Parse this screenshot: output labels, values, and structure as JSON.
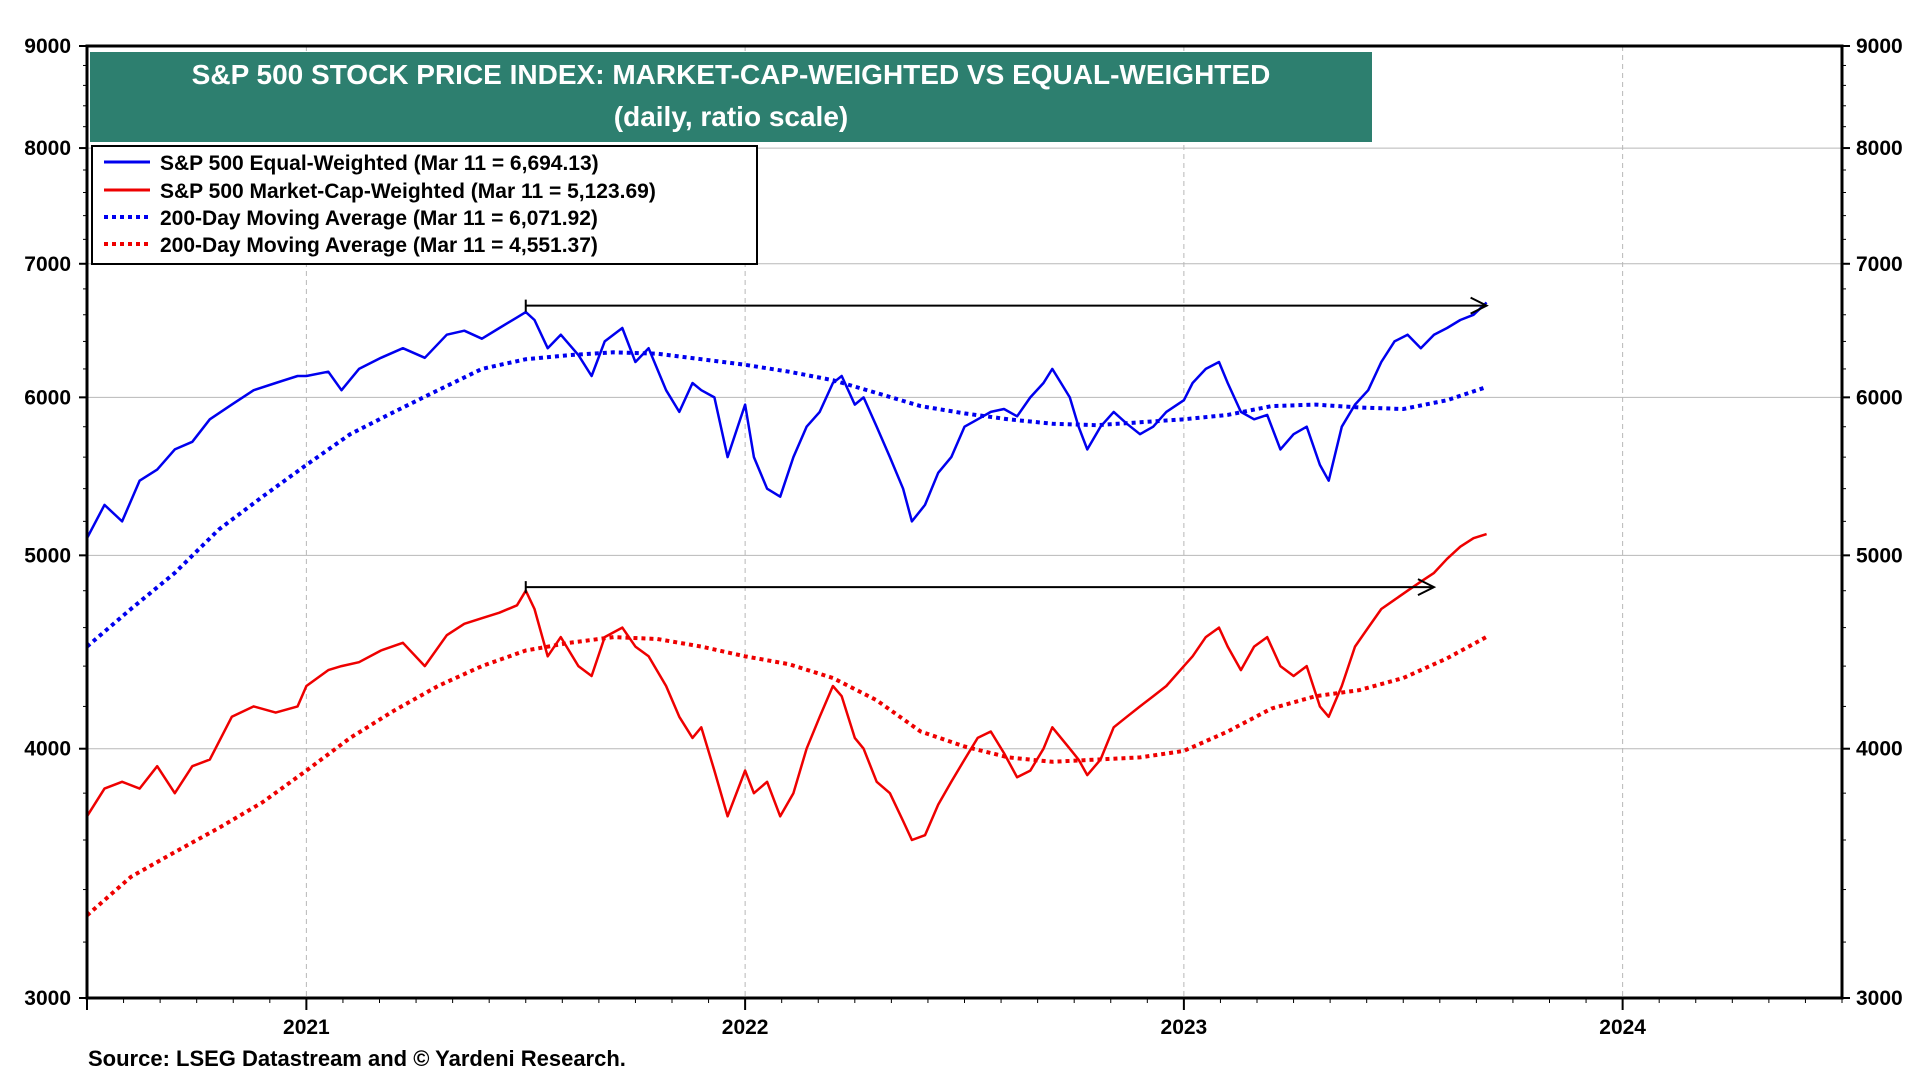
{
  "chart_data": {
    "type": "line",
    "title": "S&P 500 STOCK PRICE INDEX: MARKET-CAP-WEIGHTED VS EQUAL-WEIGHTED",
    "subtitle": "(daily, ratio scale)",
    "source": "Source: LSEG Datastream and © Yardeni Research.",
    "y_scale": "log",
    "ylim": [
      3000,
      9000
    ],
    "xlim": [
      2020.5,
      2024.5
    ],
    "y_ticks": [
      {
        "value": 3000,
        "label": "3000"
      },
      {
        "value": 4000,
        "label": "4000"
      },
      {
        "value": 5000,
        "label": "5000"
      },
      {
        "value": 6000,
        "label": "6000"
      },
      {
        "value": 7000,
        "label": "7000"
      },
      {
        "value": 8000,
        "label": "8000"
      },
      {
        "value": 9000,
        "label": "9000"
      }
    ],
    "year_boundaries": [
      2020.5,
      2021.0,
      2022.0,
      2023.0,
      2024.0
    ],
    "x_labels": [
      {
        "label": "2021",
        "at": 2021.0
      },
      {
        "label": "2022",
        "at": 2022.0
      },
      {
        "label": "2023",
        "at": 2023.0
      },
      {
        "label": "2024",
        "at": 2024.0
      }
    ],
    "series": [
      {
        "name": "S&P 500 Equal-Weighted",
        "legend": "S&P 500 Equal-Weighted (Mar 11 = 6,694.13)",
        "color": "#0000ee",
        "dash": "solid",
        "points": [
          [
            2020.5,
            5100
          ],
          [
            2020.54,
            5300
          ],
          [
            2020.58,
            5200
          ],
          [
            2020.62,
            5450
          ],
          [
            2020.66,
            5520
          ],
          [
            2020.7,
            5650
          ],
          [
            2020.74,
            5700
          ],
          [
            2020.78,
            5850
          ],
          [
            2020.83,
            5950
          ],
          [
            2020.88,
            6050
          ],
          [
            2020.93,
            6100
          ],
          [
            2020.98,
            6150
          ],
          [
            2021.0,
            6150
          ],
          [
            2021.05,
            6180
          ],
          [
            2021.08,
            6050
          ],
          [
            2021.12,
            6200
          ],
          [
            2021.17,
            6280
          ],
          [
            2021.22,
            6350
          ],
          [
            2021.27,
            6280
          ],
          [
            2021.32,
            6450
          ],
          [
            2021.36,
            6480
          ],
          [
            2021.4,
            6420
          ],
          [
            2021.44,
            6500
          ],
          [
            2021.48,
            6580
          ],
          [
            2021.5,
            6620
          ],
          [
            2021.52,
            6560
          ],
          [
            2021.55,
            6350
          ],
          [
            2021.58,
            6450
          ],
          [
            2021.62,
            6300
          ],
          [
            2021.65,
            6150
          ],
          [
            2021.68,
            6400
          ],
          [
            2021.72,
            6500
          ],
          [
            2021.75,
            6250
          ],
          [
            2021.78,
            6350
          ],
          [
            2021.82,
            6050
          ],
          [
            2021.85,
            5900
          ],
          [
            2021.88,
            6100
          ],
          [
            2021.9,
            6050
          ],
          [
            2021.93,
            6000
          ],
          [
            2021.96,
            5600
          ],
          [
            2022.0,
            5950
          ],
          [
            2022.02,
            5600
          ],
          [
            2022.05,
            5400
          ],
          [
            2022.08,
            5350
          ],
          [
            2022.11,
            5600
          ],
          [
            2022.14,
            5800
          ],
          [
            2022.17,
            5900
          ],
          [
            2022.2,
            6100
          ],
          [
            2022.22,
            6150
          ],
          [
            2022.25,
            5950
          ],
          [
            2022.27,
            6000
          ],
          [
            2022.3,
            5800
          ],
          [
            2022.33,
            5600
          ],
          [
            2022.36,
            5400
          ],
          [
            2022.38,
            5200
          ],
          [
            2022.41,
            5300
          ],
          [
            2022.44,
            5500
          ],
          [
            2022.47,
            5600
          ],
          [
            2022.5,
            5800
          ],
          [
            2022.53,
            5850
          ],
          [
            2022.56,
            5900
          ],
          [
            2022.59,
            5920
          ],
          [
            2022.62,
            5870
          ],
          [
            2022.65,
            6000
          ],
          [
            2022.68,
            6100
          ],
          [
            2022.7,
            6200
          ],
          [
            2022.72,
            6100
          ],
          [
            2022.74,
            6000
          ],
          [
            2022.76,
            5800
          ],
          [
            2022.78,
            5650
          ],
          [
            2022.81,
            5800
          ],
          [
            2022.84,
            5900
          ],
          [
            2022.87,
            5820
          ],
          [
            2022.9,
            5750
          ],
          [
            2022.93,
            5800
          ],
          [
            2022.96,
            5900
          ],
          [
            2023.0,
            5980
          ],
          [
            2023.02,
            6100
          ],
          [
            2023.05,
            6200
          ],
          [
            2023.08,
            6250
          ],
          [
            2023.1,
            6100
          ],
          [
            2023.13,
            5900
          ],
          [
            2023.16,
            5850
          ],
          [
            2023.19,
            5880
          ],
          [
            2023.22,
            5650
          ],
          [
            2023.25,
            5750
          ],
          [
            2023.28,
            5800
          ],
          [
            2023.31,
            5550
          ],
          [
            2023.33,
            5450
          ],
          [
            2023.36,
            5800
          ],
          [
            2023.39,
            5950
          ],
          [
            2023.42,
            6050
          ],
          [
            2023.45,
            6250
          ],
          [
            2023.48,
            6400
          ],
          [
            2023.51,
            6450
          ],
          [
            2023.54,
            6350
          ],
          [
            2023.57,
            6450
          ],
          [
            2023.6,
            6500
          ],
          [
            2023.63,
            6560
          ],
          [
            2023.66,
            6600
          ],
          [
            2023.69,
            6694
          ]
        ]
      },
      {
        "name": "S&P 500 Market-Cap-Weighted",
        "legend": "S&P 500 Market-Cap-Weighted (Mar 11 = 5,123.69)",
        "color": "#ee0000",
        "dash": "solid",
        "points": [
          [
            2020.5,
            3700
          ],
          [
            2020.54,
            3820
          ],
          [
            2020.58,
            3850
          ],
          [
            2020.62,
            3820
          ],
          [
            2020.66,
            3920
          ],
          [
            2020.7,
            3800
          ],
          [
            2020.74,
            3920
          ],
          [
            2020.78,
            3950
          ],
          [
            2020.83,
            4150
          ],
          [
            2020.88,
            4200
          ],
          [
            2020.93,
            4170
          ],
          [
            2020.98,
            4200
          ],
          [
            2021.0,
            4300
          ],
          [
            2021.05,
            4380
          ],
          [
            2021.08,
            4400
          ],
          [
            2021.12,
            4420
          ],
          [
            2021.17,
            4480
          ],
          [
            2021.22,
            4520
          ],
          [
            2021.27,
            4400
          ],
          [
            2021.32,
            4560
          ],
          [
            2021.36,
            4620
          ],
          [
            2021.4,
            4650
          ],
          [
            2021.44,
            4680
          ],
          [
            2021.48,
            4720
          ],
          [
            2021.5,
            4800
          ],
          [
            2021.52,
            4700
          ],
          [
            2021.55,
            4450
          ],
          [
            2021.58,
            4550
          ],
          [
            2021.62,
            4400
          ],
          [
            2021.65,
            4350
          ],
          [
            2021.68,
            4550
          ],
          [
            2021.72,
            4600
          ],
          [
            2021.75,
            4500
          ],
          [
            2021.78,
            4450
          ],
          [
            2021.82,
            4300
          ],
          [
            2021.85,
            4150
          ],
          [
            2021.88,
            4050
          ],
          [
            2021.9,
            4100
          ],
          [
            2021.93,
            3900
          ],
          [
            2021.96,
            3700
          ],
          [
            2022.0,
            3900
          ],
          [
            2022.02,
            3800
          ],
          [
            2022.05,
            3850
          ],
          [
            2022.08,
            3700
          ],
          [
            2022.11,
            3800
          ],
          [
            2022.14,
            4000
          ],
          [
            2022.17,
            4150
          ],
          [
            2022.2,
            4300
          ],
          [
            2022.22,
            4250
          ],
          [
            2022.25,
            4050
          ],
          [
            2022.27,
            4000
          ],
          [
            2022.3,
            3850
          ],
          [
            2022.33,
            3800
          ],
          [
            2022.36,
            3680
          ],
          [
            2022.38,
            3600
          ],
          [
            2022.41,
            3620
          ],
          [
            2022.44,
            3750
          ],
          [
            2022.47,
            3850
          ],
          [
            2022.5,
            3950
          ],
          [
            2022.53,
            4050
          ],
          [
            2022.56,
            4080
          ],
          [
            2022.59,
            3980
          ],
          [
            2022.62,
            3870
          ],
          [
            2022.65,
            3900
          ],
          [
            2022.68,
            4000
          ],
          [
            2022.7,
            4100
          ],
          [
            2022.72,
            4050
          ],
          [
            2022.74,
            4000
          ],
          [
            2022.76,
            3950
          ],
          [
            2022.78,
            3880
          ],
          [
            2022.81,
            3950
          ],
          [
            2022.84,
            4100
          ],
          [
            2022.87,
            4150
          ],
          [
            2022.9,
            4200
          ],
          [
            2022.93,
            4250
          ],
          [
            2022.96,
            4300
          ],
          [
            2023.0,
            4400
          ],
          [
            2023.02,
            4450
          ],
          [
            2023.05,
            4550
          ],
          [
            2023.08,
            4600
          ],
          [
            2023.1,
            4500
          ],
          [
            2023.13,
            4380
          ],
          [
            2023.16,
            4500
          ],
          [
            2023.19,
            4550
          ],
          [
            2023.22,
            4400
          ],
          [
            2023.25,
            4350
          ],
          [
            2023.28,
            4400
          ],
          [
            2023.31,
            4200
          ],
          [
            2023.33,
            4150
          ],
          [
            2023.36,
            4300
          ],
          [
            2023.39,
            4500
          ],
          [
            2023.42,
            4600
          ],
          [
            2023.45,
            4700
          ],
          [
            2023.48,
            4750
          ],
          [
            2023.51,
            4800
          ],
          [
            2023.54,
            4850
          ],
          [
            2023.57,
            4900
          ],
          [
            2023.6,
            4980
          ],
          [
            2023.63,
            5050
          ],
          [
            2023.66,
            5100
          ],
          [
            2023.69,
            5124
          ]
        ]
      },
      {
        "name": "200-Day Moving Average",
        "legend": "200-Day Moving Average (Mar 11 = 6,071.92)",
        "color": "#0000ee",
        "dash": "dotted",
        "points": [
          [
            2020.5,
            4500
          ],
          [
            2020.6,
            4700
          ],
          [
            2020.7,
            4900
          ],
          [
            2020.8,
            5150
          ],
          [
            2020.9,
            5350
          ],
          [
            2021.0,
            5550
          ],
          [
            2021.1,
            5750
          ],
          [
            2021.2,
            5900
          ],
          [
            2021.3,
            6050
          ],
          [
            2021.4,
            6200
          ],
          [
            2021.5,
            6270
          ],
          [
            2021.6,
            6300
          ],
          [
            2021.7,
            6320
          ],
          [
            2021.8,
            6310
          ],
          [
            2021.9,
            6270
          ],
          [
            2022.0,
            6230
          ],
          [
            2022.1,
            6180
          ],
          [
            2022.2,
            6120
          ],
          [
            2022.3,
            6030
          ],
          [
            2022.4,
            5940
          ],
          [
            2022.5,
            5890
          ],
          [
            2022.6,
            5850
          ],
          [
            2022.7,
            5820
          ],
          [
            2022.8,
            5810
          ],
          [
            2022.9,
            5830
          ],
          [
            2023.0,
            5850
          ],
          [
            2023.1,
            5880
          ],
          [
            2023.2,
            5940
          ],
          [
            2023.3,
            5950
          ],
          [
            2023.4,
            5930
          ],
          [
            2023.5,
            5920
          ],
          [
            2023.6,
            5980
          ],
          [
            2023.69,
            6072
          ]
        ]
      },
      {
        "name": "200-Day Moving Average",
        "legend": "200-Day Moving Average (Mar 11 = 4,551.37)",
        "color": "#ee0000",
        "dash": "dotted",
        "points": [
          [
            2020.5,
            3300
          ],
          [
            2020.6,
            3450
          ],
          [
            2020.7,
            3550
          ],
          [
            2020.8,
            3650
          ],
          [
            2020.9,
            3760
          ],
          [
            2021.0,
            3900
          ],
          [
            2021.1,
            4050
          ],
          [
            2021.2,
            4180
          ],
          [
            2021.3,
            4300
          ],
          [
            2021.4,
            4400
          ],
          [
            2021.5,
            4480
          ],
          [
            2021.6,
            4520
          ],
          [
            2021.7,
            4550
          ],
          [
            2021.8,
            4540
          ],
          [
            2021.9,
            4500
          ],
          [
            2022.0,
            4450
          ],
          [
            2022.1,
            4410
          ],
          [
            2022.2,
            4340
          ],
          [
            2022.3,
            4230
          ],
          [
            2022.4,
            4080
          ],
          [
            2022.5,
            4010
          ],
          [
            2022.6,
            3960
          ],
          [
            2022.7,
            3940
          ],
          [
            2022.8,
            3950
          ],
          [
            2022.9,
            3960
          ],
          [
            2023.0,
            3990
          ],
          [
            2023.1,
            4080
          ],
          [
            2023.2,
            4190
          ],
          [
            2023.3,
            4250
          ],
          [
            2023.4,
            4280
          ],
          [
            2023.5,
            4340
          ],
          [
            2023.6,
            4440
          ],
          [
            2023.69,
            4551
          ]
        ]
      }
    ],
    "annotations": [
      {
        "type": "arrow",
        "from": [
          2021.5,
          6670
        ],
        "to": [
          2023.69,
          6670
        ],
        "color": "#000000"
      },
      {
        "type": "arrow",
        "from": [
          2021.5,
          4820
        ],
        "to": [
          2023.57,
          4820
        ],
        "color": "#000000"
      }
    ]
  }
}
